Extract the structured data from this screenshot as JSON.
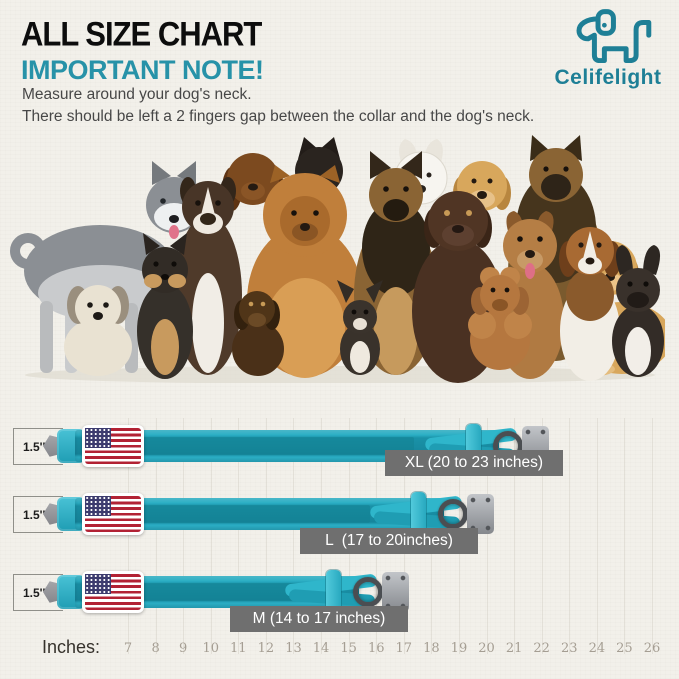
{
  "header": {
    "title": "ALL SIZE CHART",
    "subtitle": "IMPORTANT NOTE!",
    "note_line1": "Measure around your dog's neck.",
    "note_line2": "There should be left a 2 fingers gap between the collar and the dog's neck.",
    "brand": "Celifelight"
  },
  "hero_image": {
    "description": "Group photo of many dogs of different breeds and sizes (husky, shih tzu, shiba, boxer, dachshund, chow chow, chihuahua, german shepherds, labrador, golden retrievers, poodle, beagle, french bulldog) sitting together"
  },
  "sizes": [
    {
      "size": "XL",
      "width_label": "1.5''",
      "range_inches": "20 to 23",
      "label": "XL (20 to 23 inches)"
    },
    {
      "size": "L",
      "width_label": "1.5''",
      "range_inches": "17 to 20",
      "label": "L  (17 to 20inches)"
    },
    {
      "size": "M",
      "width_label": "1.5''",
      "range_inches": "14 to 17",
      "label": "M (14 to 17 inches)"
    }
  ],
  "ruler": {
    "label": "Inches:",
    "ticks": [
      "7",
      "8",
      "9",
      "10",
      "11",
      "12",
      "13",
      "14",
      "15",
      "16",
      "17",
      "18",
      "19",
      "20",
      "21",
      "22",
      "23",
      "24",
      "25",
      "26"
    ]
  },
  "colors": {
    "accent_teal": "#1e7f96",
    "subtitle_teal": "#2792a8",
    "collar_teal": "#29b0c6",
    "label_gray": "#6f6f6f",
    "background": "#f2f0ea"
  }
}
